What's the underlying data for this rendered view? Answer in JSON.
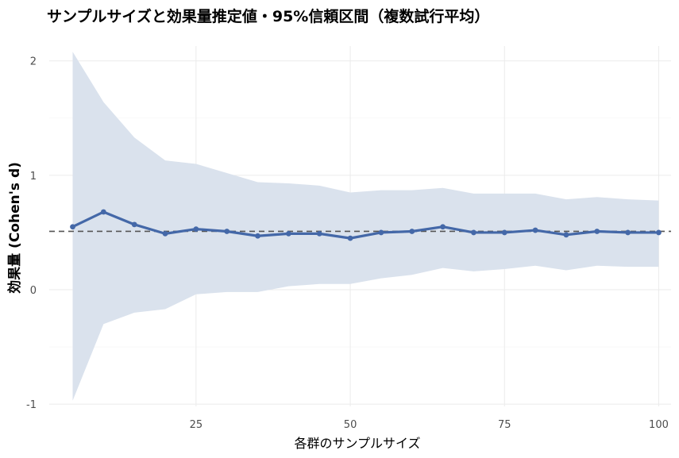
{
  "chart_data": {
    "type": "line",
    "title": "サンプルサイズと効果量推定値・95%信頼区間（複数試行平均）",
    "xlabel": "各群のサンプルサイズ",
    "ylabel": "効果量 (Cohen's d)",
    "xlim": [
      1.2,
      102
    ],
    "ylim": [
      -1.02,
      2.13
    ],
    "x_ticks": [
      25,
      50,
      75,
      100
    ],
    "x_tick_labels": [
      "25",
      "50",
      "75",
      "100"
    ],
    "y_ticks": [
      -1,
      0,
      1,
      2
    ],
    "y_tick_labels": [
      "-1",
      "0",
      "1",
      "2"
    ],
    "grid": true,
    "reference_line": {
      "y": 0.51,
      "style": "dashed"
    },
    "series": [
      {
        "x": [
          5,
          10,
          15,
          20,
          25,
          30,
          35,
          40,
          45,
          50,
          55,
          60,
          65,
          70,
          75,
          80,
          85,
          90,
          95,
          100
        ],
        "y": [
          0.55,
          0.68,
          0.57,
          0.49,
          0.53,
          0.51,
          0.47,
          0.49,
          0.49,
          0.45,
          0.5,
          0.51,
          0.55,
          0.5,
          0.5,
          0.52,
          0.48,
          0.51,
          0.5,
          0.5
        ],
        "ci_lower": [
          -0.97,
          -0.3,
          -0.2,
          -0.17,
          -0.04,
          -0.02,
          -0.02,
          0.03,
          0.05,
          0.05,
          0.1,
          0.13,
          0.19,
          0.16,
          0.18,
          0.21,
          0.17,
          0.21,
          0.2,
          0.2
        ],
        "ci_upper": [
          2.08,
          1.64,
          1.33,
          1.13,
          1.1,
          1.02,
          0.94,
          0.93,
          0.91,
          0.85,
          0.87,
          0.87,
          0.89,
          0.84,
          0.84,
          0.84,
          0.79,
          0.81,
          0.79,
          0.78
        ]
      }
    ],
    "colors": {
      "line": "#4468a8",
      "ribbon": "#dae2ed",
      "reference": "#555555",
      "grid": "#ebebeb"
    }
  }
}
